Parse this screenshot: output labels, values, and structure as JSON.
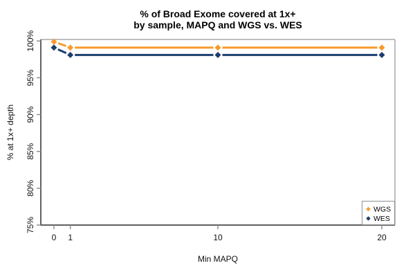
{
  "figure": {
    "title_line1": "% of Broad Exome covered at 1x+",
    "title_line2": "by sample, MAPQ and WGS vs. WES",
    "xlabel": "Min MAPQ",
    "ylabel": "% at 1x+ depth"
  },
  "chart_data": {
    "type": "line",
    "title": "% of Broad Exome covered at 1x+ by sample, MAPQ and WGS vs. WES",
    "xlabel": "Min MAPQ",
    "ylabel": "% at 1x+ depth",
    "x": [
      0,
      1,
      10,
      20
    ],
    "series": [
      {
        "name": "WGS",
        "color": "#F89B2D",
        "values": [
          99.9,
          99.1,
          99.1,
          99.1
        ]
      },
      {
        "name": "WES",
        "color": "#1C3D6E",
        "values": [
          99.1,
          98.1,
          98.1,
          98.1
        ]
      }
    ],
    "marker": "diamond",
    "draw_style": "points-and-lines",
    "xlim": [
      0,
      20
    ],
    "ylim": [
      75,
      100
    ],
    "xticks": [
      0,
      1,
      10,
      20
    ],
    "xtick_labels": [
      "0",
      "1",
      "10",
      "20"
    ],
    "yticks": [
      75,
      80,
      85,
      90,
      95,
      100
    ],
    "ytick_labels": [
      "75%",
      "80%",
      "85%",
      "90%",
      "95%",
      "100%"
    ],
    "grid": false,
    "legend": {
      "position": "bottom-right",
      "entries": [
        "WGS",
        "WES"
      ]
    },
    "colors": {
      "axis": "#2B2B2B",
      "box_border": "#A9A9A9",
      "tick": "#8F8F8F",
      "label": "#111111",
      "legend_border": "#8F8F8F",
      "background": "#FFFFFF"
    }
  }
}
